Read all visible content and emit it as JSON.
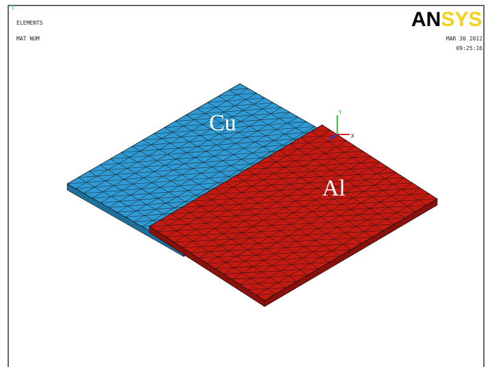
{
  "viewport": {
    "window_number": "1",
    "plot_label": "ELEMENTS",
    "plot_option": "MAT NUM"
  },
  "logo": {
    "part1": "AN",
    "part2": "SYS"
  },
  "timestamp": {
    "date": "MAR 30 2012",
    "time": "09:25:16"
  },
  "materials": {
    "left": "Cu",
    "right": "Al"
  },
  "triad": {
    "y": "Y",
    "x": "X"
  }
}
